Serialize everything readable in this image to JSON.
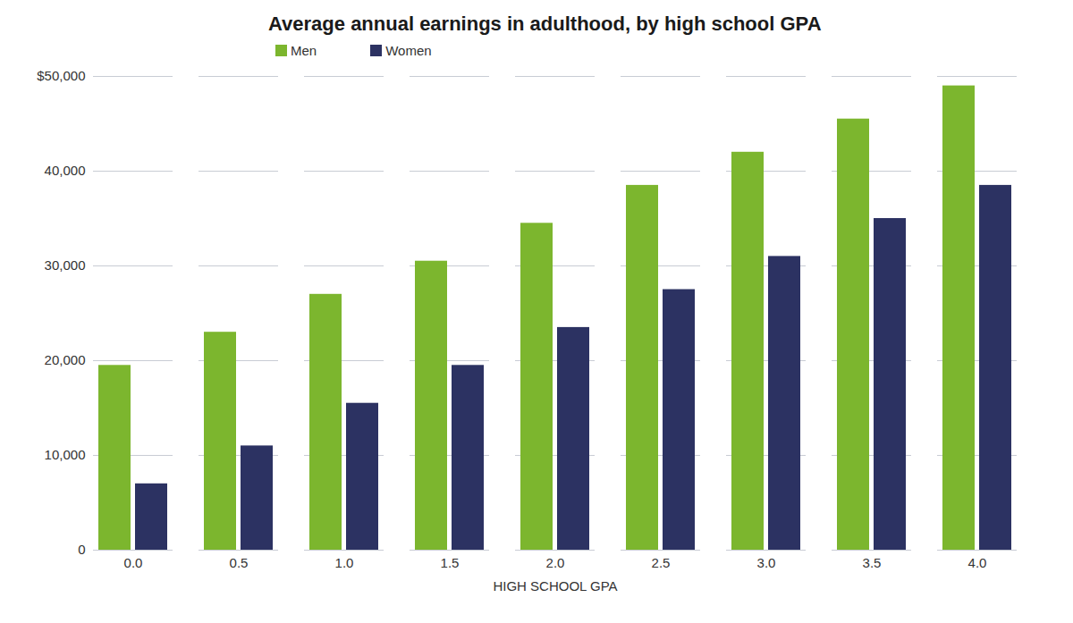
{
  "chart_data": {
    "type": "bar",
    "title": "Average annual earnings in adulthood, by high school GPA",
    "x_label": "HIGH SCHOOL GPA",
    "categories": [
      "0.0",
      "0.5",
      "1.0",
      "1.5",
      "2.0",
      "2.5",
      "3.0",
      "3.5",
      "4.0"
    ],
    "series": [
      {
        "name": "Men",
        "color": "#7cb62e",
        "values": [
          19500,
          23000,
          27000,
          30500,
          34500,
          38500,
          42000,
          45500,
          49000
        ]
      },
      {
        "name": "Women",
        "color": "#2c3262",
        "values": [
          7000,
          11000,
          15500,
          19500,
          23500,
          27500,
          31000,
          35000,
          38500
        ]
      }
    ],
    "ylim": [
      0,
      50000
    ],
    "yticks": [
      0,
      {
        "value": 10000,
        "label": "10,000"
      },
      {
        "value": 20000,
        "label": "20,000"
      },
      {
        "value": 30000,
        "label": "30,000"
      },
      {
        "value": 40000,
        "label": "40,000"
      },
      {
        "value": 50000,
        "label": "$50,000"
      }
    ],
    "grid": true,
    "legend": "top-left"
  }
}
